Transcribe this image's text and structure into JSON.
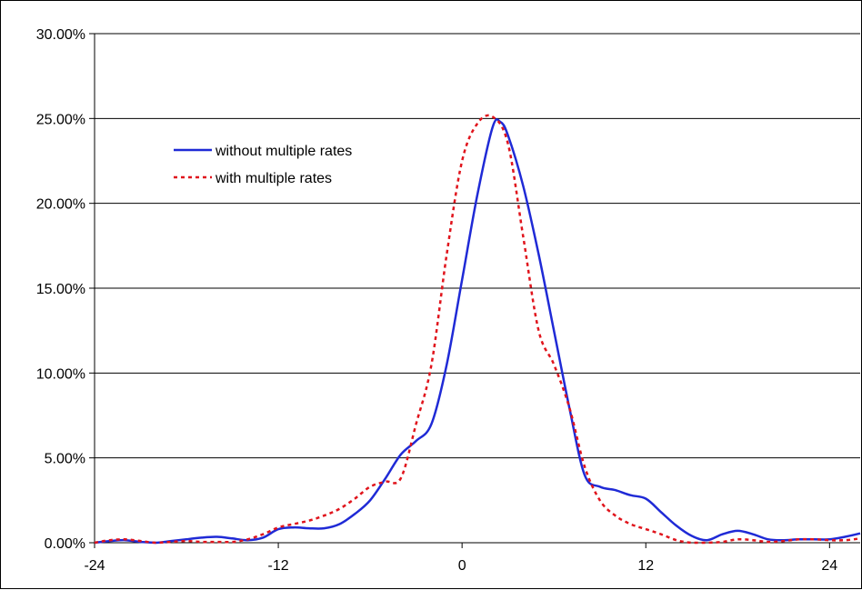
{
  "chart_data": {
    "type": "line",
    "title": "",
    "xlabel": "",
    "ylabel": "",
    "xlim": [
      -24,
      26
    ],
    "ylim": [
      0,
      30
    ],
    "x_ticks": [
      -24,
      -12,
      0,
      12,
      24
    ],
    "x_tick_labels": [
      "-24",
      "-12",
      "0",
      "12",
      "24"
    ],
    "y_ticks": [
      0,
      5,
      10,
      15,
      20,
      25,
      30
    ],
    "y_tick_labels": [
      "0.00%",
      "5.00%",
      "10.00%",
      "15.00%",
      "20.00%",
      "25.00%",
      "30.00%"
    ],
    "grid": "horizontal",
    "legend_position": "top-left",
    "series": [
      {
        "name": "without multiple rates",
        "color": "#1f2ad6",
        "style": "solid",
        "points": [
          [
            -24,
            0
          ],
          [
            -23,
            0.1
          ],
          [
            -22,
            0.15
          ],
          [
            -21,
            0.05
          ],
          [
            -20,
            0.0
          ],
          [
            -19,
            0.1
          ],
          [
            -18,
            0.2
          ],
          [
            -17,
            0.3
          ],
          [
            -16,
            0.35
          ],
          [
            -15,
            0.25
          ],
          [
            -14,
            0.15
          ],
          [
            -13,
            0.3
          ],
          [
            -12,
            0.8
          ],
          [
            -11,
            0.9
          ],
          [
            -10,
            0.85
          ],
          [
            -9,
            0.85
          ],
          [
            -8,
            1.1
          ],
          [
            -7,
            1.7
          ],
          [
            -6,
            2.5
          ],
          [
            -5,
            3.8
          ],
          [
            -4,
            5.2
          ],
          [
            -3,
            6.0
          ],
          [
            -2,
            7.0
          ],
          [
            -1,
            10.5
          ],
          [
            0,
            15.5
          ],
          [
            1,
            20.5
          ],
          [
            2,
            24.5
          ],
          [
            2.5,
            24.8
          ],
          [
            3,
            24.0
          ],
          [
            4,
            21.0
          ],
          [
            5,
            17.0
          ],
          [
            6,
            12.5
          ],
          [
            7,
            8.0
          ],
          [
            8,
            4.0
          ],
          [
            9,
            3.3
          ],
          [
            10,
            3.1
          ],
          [
            11,
            2.8
          ],
          [
            12,
            2.6
          ],
          [
            13,
            1.8
          ],
          [
            14,
            1.0
          ],
          [
            15,
            0.4
          ],
          [
            16,
            0.15
          ],
          [
            17,
            0.5
          ],
          [
            18,
            0.7
          ],
          [
            19,
            0.5
          ],
          [
            20,
            0.2
          ],
          [
            21,
            0.15
          ],
          [
            22,
            0.2
          ],
          [
            23,
            0.2
          ],
          [
            24,
            0.2
          ],
          [
            25,
            0.35
          ],
          [
            26,
            0.55
          ]
        ]
      },
      {
        "name": "with multiple rates",
        "color": "#e0141c",
        "style": "dotted",
        "points": [
          [
            -24,
            0
          ],
          [
            -23,
            0.15
          ],
          [
            -22,
            0.2
          ],
          [
            -21,
            0.1
          ],
          [
            -20,
            0.0
          ],
          [
            -19,
            0.05
          ],
          [
            -18,
            0.1
          ],
          [
            -17,
            0.05
          ],
          [
            -16,
            0.05
          ],
          [
            -15,
            0.05
          ],
          [
            -14,
            0.2
          ],
          [
            -13,
            0.5
          ],
          [
            -12,
            0.9
          ],
          [
            -11,
            1.1
          ],
          [
            -10,
            1.3
          ],
          [
            -9,
            1.6
          ],
          [
            -8,
            2.0
          ],
          [
            -7,
            2.6
          ],
          [
            -6,
            3.3
          ],
          [
            -5,
            3.6
          ],
          [
            -4,
            3.8
          ],
          [
            -3,
            7.0
          ],
          [
            -2,
            10.5
          ],
          [
            -1,
            17.0
          ],
          [
            0,
            22.5
          ],
          [
            1,
            24.7
          ],
          [
            2,
            25.1
          ],
          [
            3,
            23.5
          ],
          [
            4,
            18.0
          ],
          [
            5,
            12.5
          ],
          [
            6,
            10.5
          ],
          [
            7,
            8.0
          ],
          [
            8,
            4.5
          ],
          [
            9,
            2.5
          ],
          [
            10,
            1.6
          ],
          [
            11,
            1.1
          ],
          [
            12,
            0.8
          ],
          [
            13,
            0.5
          ],
          [
            14,
            0.15
          ],
          [
            15,
            0.0
          ],
          [
            16,
            0.0
          ],
          [
            17,
            0.05
          ],
          [
            18,
            0.2
          ],
          [
            19,
            0.15
          ],
          [
            20,
            0.05
          ],
          [
            21,
            0.1
          ],
          [
            22,
            0.2
          ],
          [
            23,
            0.2
          ],
          [
            24,
            0.15
          ],
          [
            25,
            0.15
          ],
          [
            26,
            0.25
          ]
        ]
      }
    ]
  }
}
